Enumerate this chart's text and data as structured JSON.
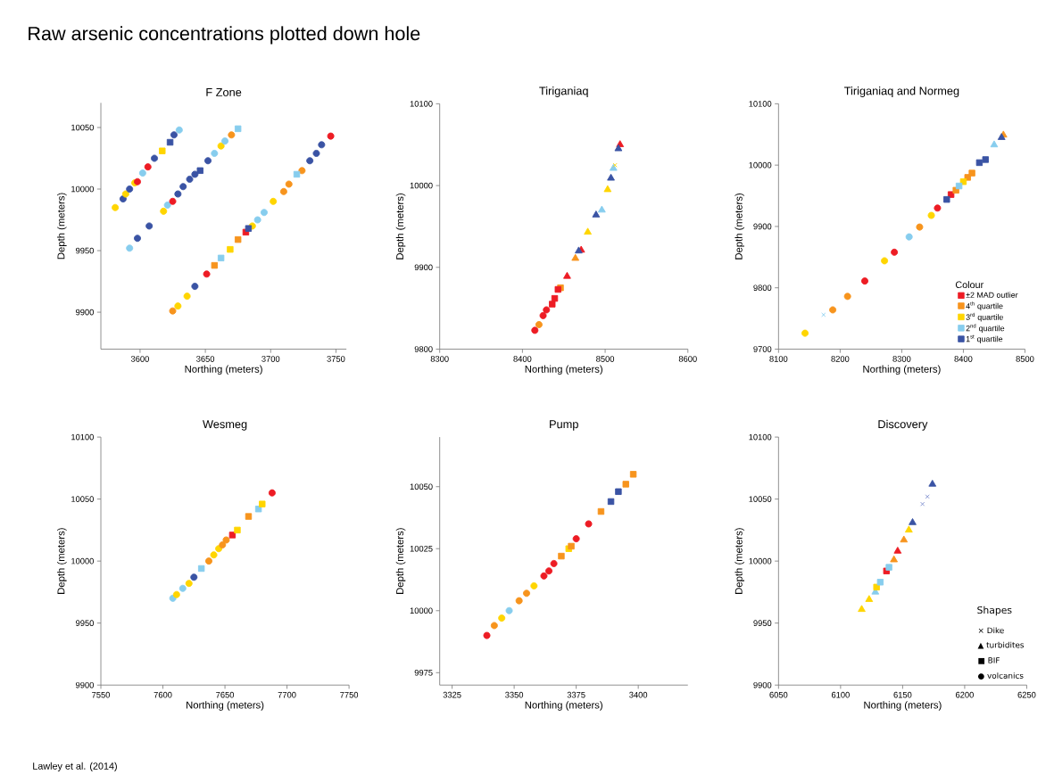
{
  "chart_data": [
    {
      "type": "other",
      "title": "Raw arsenic concentrations plotted down hole",
      "annotations": [
        "Lawley et al. (2014)"
      ]
    },
    {
      "type": "scatter",
      "title": "F Zone",
      "xlabel": "Northing (meters)",
      "ylabel": "Depth (meters)",
      "xlim": [
        3570,
        3758
      ],
      "ylim": [
        9870,
        10070
      ],
      "xticks": [
        3600,
        3650,
        3700,
        3750
      ],
      "yticks": [
        9900,
        9950,
        10000,
        10050
      ],
      "series": [
        {
          "marker": "circle",
          "x": [
            3581,
            3587,
            3589,
            3592,
            3596,
            3598,
            3602,
            3606,
            3611,
            3626,
            3630,
            3607,
            3598,
            3592,
            3618,
            3621,
            3625,
            3629,
            3633,
            3638,
            3642,
            3652,
            3657,
            3662,
            3665,
            3670,
            3625,
            3629,
            3636,
            3642,
            3651,
            3686,
            3690,
            3695,
            3702,
            3710,
            3714,
            3724,
            3730,
            3735,
            3739,
            3746
          ],
          "values": [
            9985,
            9992,
            9996,
            10000,
            10005,
            10006,
            10013,
            10018,
            10025,
            10044,
            10048,
            9970,
            9960,
            9952,
            9982,
            9987,
            9990,
            9996,
            10002,
            10008,
            10012,
            10023,
            10029,
            10035,
            10039,
            10044,
            9901,
            9905,
            9913,
            9921,
            9931,
            9970,
            9975,
            9981,
            9990,
            9998,
            10004,
            10015,
            10023,
            10029,
            10036,
            10043
          ],
          "colors": [
            "#ffd500",
            "#3a53a4",
            "#ffd500",
            "#3a53a4",
            "#ffd500",
            "#ed1c24",
            "#87cdee",
            "#ed1c24",
            "#3a53a4",
            "#3a53a4",
            "#87cdee",
            "#3a53a4",
            "#3a53a4",
            "#87cdee",
            "#ffd500",
            "#87cdee",
            "#ed1c24",
            "#3a53a4",
            "#3a53a4",
            "#3a53a4",
            "#3a53a4",
            "#3a53a4",
            "#87cdee",
            "#ffd500",
            "#87cdee",
            "#f7941d",
            "#f7941d",
            "#ffd500",
            "#ffd500",
            "#3a53a4",
            "#ed1c24",
            "#ffd500",
            "#87cdee",
            "#87cdee",
            "#ffd500",
            "#f7941d",
            "#f7941d",
            "#f7941d",
            "#3a53a4",
            "#3a53a4",
            "#3a53a4",
            "#ed1c24"
          ]
        },
        {
          "marker": "square",
          "x": [
            3617,
            3623,
            3646,
            3675,
            3657,
            3662,
            3669,
            3675,
            3681,
            3683,
            3720
          ],
          "values": [
            10031,
            10038,
            10015,
            10049,
            9938,
            9944,
            9951,
            9959,
            9965,
            9968,
            10012
          ],
          "colors": [
            "#ffd500",
            "#3a53a4",
            "#3a53a4",
            "#87cdee",
            "#f7941d",
            "#87cdee",
            "#ffd500",
            "#f7941d",
            "#ed1c24",
            "#3a53a4",
            "#87cdee"
          ]
        }
      ]
    },
    {
      "type": "scatter",
      "title": "Tiriganiaq",
      "xlabel": "Northing (meters)",
      "ylabel": "Depth (meters)",
      "xlim": [
        8300,
        8600
      ],
      "ylim": [
        9800,
        10100
      ],
      "xticks": [
        8300,
        8400,
        8500,
        8600
      ],
      "yticks": [
        9800,
        9900,
        10000,
        10100
      ],
      "series": [
        {
          "marker": "triangle",
          "x": [
            8518,
            8516,
            8510,
            8507,
            8503,
            8496,
            8489,
            8479,
            8471,
            8468,
            8464,
            8454
          ],
          "values": [
            10050,
            10045,
            10021,
            10009,
            9995,
            9970,
            9964,
            9943,
            9921,
            9920,
            9911,
            9889
          ],
          "colors": [
            "#ed1c24",
            "#3a53a4",
            "#87cdee",
            "#3a53a4",
            "#ffd500",
            "#87cdee",
            "#3a53a4",
            "#ffd500",
            "#ed1c24",
            "#3a53a4",
            "#f7941d",
            "#ed1c24"
          ]
        },
        {
          "marker": "square",
          "x": [
            8446,
            8443,
            8439,
            8436
          ],
          "values": [
            9875,
            9873,
            9862,
            9855
          ],
          "colors": [
            "#f7941d",
            "#ed1c24",
            "#ed1c24",
            "#ed1c24"
          ]
        },
        {
          "marker": "circle",
          "x": [
            8429,
            8425,
            8420,
            8415
          ],
          "values": [
            9848,
            9841,
            9830,
            9823
          ],
          "colors": [
            "#ed1c24",
            "#ed1c24",
            "#f7941d",
            "#ed1c24"
          ]
        },
        {
          "marker": "cross",
          "x": [
            8512
          ],
          "values": [
            10025
          ],
          "colors": [
            "#ffd500"
          ]
        }
      ]
    },
    {
      "type": "scatter",
      "title": "Tiriganiaq and Normeg",
      "xlabel": "Northing (meters)",
      "ylabel": "Depth (meters)",
      "xlim": [
        8100,
        8500
      ],
      "ylim": [
        9700,
        10100
      ],
      "xticks": [
        8100,
        8200,
        8300,
        8400,
        8500
      ],
      "yticks": [
        9700,
        9800,
        9900,
        10000,
        10100
      ],
      "legend": "bottom right",
      "legend_title": "Colour",
      "series": [
        {
          "name": "±2 MAD outlier",
          "color": "#ed1c24",
          "marker": "square",
          "x": [
            8380
          ],
          "values": [
            9952
          ]
        },
        {
          "name": "4$^{th}$ quartile",
          "color": "#f7941d",
          "marker": "square",
          "x": [
            8388,
            8407,
            8414
          ],
          "values": [
            9959,
            9980,
            9987
          ]
        },
        {
          "name": "3$^{rd}$ quartile",
          "color": "#ffd500",
          "marker": "square",
          "x": [
            8400
          ],
          "values": [
            9973
          ]
        },
        {
          "name": "2$^{nd}$ quartile",
          "color": "#87cdee",
          "marker": "square",
          "x": [
            8393
          ],
          "values": [
            9966
          ]
        },
        {
          "name": "1$^{st}$ quartile",
          "color": "#3a53a4",
          "marker": "square",
          "x": [
            8373,
            8426,
            8436
          ],
          "values": [
            9944,
            10004,
            10009
          ]
        },
        {
          "marker": "circle",
          "x": [
            8143,
            8188,
            8212,
            8240,
            8272,
            8288,
            8312,
            8329,
            8348,
            8358
          ],
          "values": [
            9726,
            9764,
            9786,
            9811,
            9844,
            9858,
            9883,
            9899,
            9918,
            9930
          ],
          "colors": [
            "#ffd500",
            "#f7941d",
            "#f7941d",
            "#ed1c24",
            "#ffd500",
            "#ed1c24",
            "#87cdee",
            "#f7941d",
            "#ffd500",
            "#ed1c24"
          ]
        },
        {
          "marker": "triangle",
          "x": [
            8450,
            8465,
            8462
          ],
          "values": [
            10033,
            10049,
            10045
          ],
          "colors": [
            "#87cdee",
            "#f7941d",
            "#3a53a4"
          ]
        },
        {
          "marker": "cross",
          "x": [
            8173
          ],
          "values": [
            9756
          ],
          "colors": [
            "#87cdee"
          ]
        }
      ]
    },
    {
      "type": "scatter",
      "title": "Wesmeg",
      "xlabel": "Northing (meters)",
      "ylabel": "Depth (meters)",
      "xlim": [
        7550,
        7750
      ],
      "ylim": [
        9900,
        10100
      ],
      "xticks": [
        7550,
        7600,
        7650,
        7700,
        7750
      ],
      "yticks": [
        9900,
        9950,
        10000,
        10050,
        10100
      ],
      "series": [
        {
          "marker": "circle",
          "x": [
            7608,
            7611,
            7616,
            7621,
            7625,
            7637,
            7641,
            7645,
            7648,
            7651,
            7688
          ],
          "values": [
            9970,
            9973,
            9978,
            9982,
            9987,
            10000,
            10005,
            10010,
            10013,
            10017,
            10055
          ],
          "colors": [
            "#87cdee",
            "#ffd500",
            "#87cdee",
            "#ffd500",
            "#3a53a4",
            "#f7941d",
            "#ffd500",
            "#ffd500",
            "#f7941d",
            "#f7941d",
            "#ed1c24"
          ]
        },
        {
          "marker": "square",
          "x": [
            7631,
            7656,
            7660,
            7669,
            7677,
            7680
          ],
          "values": [
            9994,
            10021,
            10025,
            10036,
            10042,
            10046
          ],
          "colors": [
            "#87cdee",
            "#ed1c24",
            "#ffd500",
            "#f7941d",
            "#87cdee",
            "#ffd500"
          ]
        }
      ]
    },
    {
      "type": "scatter",
      "title": "Pump",
      "xlabel": "Northing (meters)",
      "ylabel": "Depth (meters)",
      "xlim": [
        3320,
        3420
      ],
      "ylim": [
        9970,
        10070
      ],
      "xticks": [
        3325,
        3350,
        3375,
        3400
      ],
      "yticks": [
        9975,
        10000,
        10025,
        10050
      ],
      "series": [
        {
          "marker": "circle",
          "x": [
            3339,
            3342,
            3345,
            3348,
            3352,
            3355,
            3358,
            3362,
            3364,
            3366,
            3375,
            3380
          ],
          "values": [
            9990,
            9994,
            9997,
            10000,
            10004,
            10007,
            10010,
            10014,
            10016,
            10019,
            10029,
            10035
          ],
          "colors": [
            "#ed1c24",
            "#f7941d",
            "#ffd500",
            "#87cdee",
            "#f7941d",
            "#f7941d",
            "#ffd500",
            "#ed1c24",
            "#ed1c24",
            "#ed1c24",
            "#ed1c24",
            "#ed1c24"
          ]
        },
        {
          "marker": "square",
          "x": [
            3369,
            3372,
            3373,
            3385,
            3389,
            3392,
            3395,
            3398
          ],
          "values": [
            10022,
            10025,
            10026,
            10040,
            10044,
            10048,
            10051,
            10055
          ],
          "colors": [
            "#f7941d",
            "#ffd500",
            "#f7941d",
            "#f7941d",
            "#3a53a4",
            "#3a53a4",
            "#f7941d",
            "#f7941d"
          ]
        }
      ]
    },
    {
      "type": "scatter",
      "title": "Discovery",
      "xlabel": "Northing (meters)",
      "ylabel": "Depth (meters)",
      "xlim": [
        6050,
        6250
      ],
      "ylim": [
        9900,
        10100
      ],
      "xticks": [
        6050,
        6100,
        6150,
        6200,
        6250
      ],
      "yticks": [
        9900,
        9950,
        10000,
        10050,
        10100
      ],
      "annotations": [
        "Shapes",
        "× Dike",
        "▲ turbidites",
        "■ BIF",
        "● volcanics"
      ],
      "series": [
        {
          "marker": "cross",
          "x": [
            6166,
            6170
          ],
          "values": [
            10046,
            10052
          ],
          "colors": [
            "#7f8fcf",
            "#7f8fcf"
          ]
        },
        {
          "marker": "triangle",
          "x": [
            6117,
            6123,
            6128,
            6143,
            6146,
            6151,
            6155,
            6158,
            6174
          ],
          "values": [
            9961,
            9969,
            9975,
            10001,
            10008,
            10017,
            10025,
            10031,
            10062
          ],
          "colors": [
            "#ffd500",
            "#ffd500",
            "#87cdee",
            "#f7941d",
            "#ed1c24",
            "#f7941d",
            "#ffd500",
            "#3a53a4",
            "#3a53a4"
          ]
        },
        {
          "marker": "square",
          "x": [
            6129,
            6132,
            6137,
            6139
          ],
          "values": [
            9979,
            9983,
            9992,
            9995
          ],
          "colors": [
            "#ffd500",
            "#87cdee",
            "#ed1c24",
            "#87cdee"
          ]
        }
      ]
    }
  ]
}
